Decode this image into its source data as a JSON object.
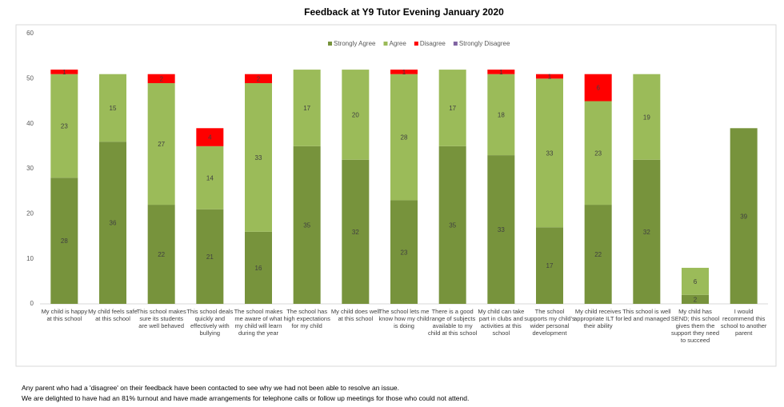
{
  "chart_data": {
    "type": "stacked_bar",
    "title": "Feedback at Y9 Tutor Evening January 2020",
    "categories": [
      "My child is happy at this school",
      "My child feels safe at this school",
      "This school makes sure its students are well behaved",
      "This school deals quickly and effectively with bullying",
      "The school makes me aware of what my child will learn during the year",
      "The school has high expectations for my child",
      "My child does well at this school",
      "The school lets me know how my child is doing",
      "There is a good range of subjects available to my child at this school",
      "My child can take part in clubs and activities at this school",
      "The school supports my child's wider personal development",
      "My child receives appropriate ILT for their ability",
      "This school is well led and managed",
      "My child has SEND; this school gives them the support they need to succeed",
      "I would recommend this school to another parent"
    ],
    "series": [
      {
        "name": "Strongly Agree",
        "color": "#77933c",
        "values": [
          28,
          36,
          22,
          21,
          16,
          35,
          32,
          23,
          35,
          33,
          17,
          22,
          32,
          2,
          39
        ]
      },
      {
        "name": "Agree",
        "color": "#9bbb59",
        "values": [
          23,
          15,
          27,
          14,
          33,
          17,
          20,
          28,
          17,
          18,
          33,
          23,
          19,
          6,
          null
        ]
      },
      {
        "name": "Disagree",
        "color": "#ff0000",
        "values": [
          1,
          null,
          2,
          4,
          2,
          null,
          null,
          1,
          null,
          1,
          1,
          6,
          null,
          null,
          null
        ]
      },
      {
        "name": "Strongly Disagree",
        "color": "#8064a2",
        "values": [
          null,
          null,
          null,
          null,
          null,
          null,
          null,
          null,
          null,
          null,
          null,
          null,
          null,
          null,
          null
        ]
      }
    ],
    "ylim": [
      0,
      60
    ],
    "yticks": [
      0,
      10,
      20,
      30,
      40,
      50,
      60
    ],
    "legend": "top"
  },
  "notes": [
    "Any parent who had a 'disagree' on their feedback have been contacted to see why we had not been able to resolve an issue.",
    "We are delighted to have had an 81% turnout and have made arrangements for telephone calls or follow up meetings for those who could not attend."
  ]
}
